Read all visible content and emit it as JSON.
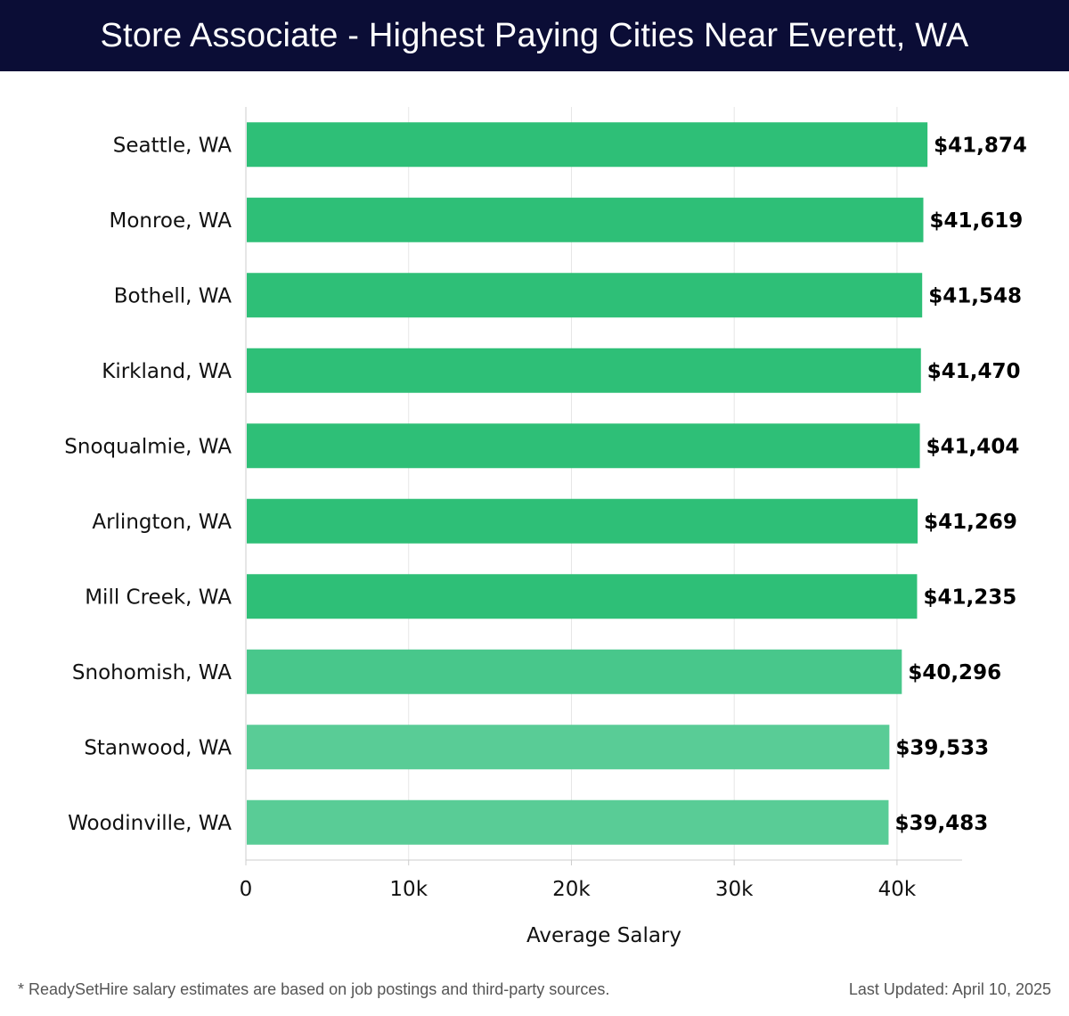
{
  "header": {
    "title": "Store Associate - Highest Paying Cities Near Everett, WA"
  },
  "chart_data": {
    "type": "bar",
    "orientation": "horizontal",
    "title": "Store Associate - Highest Paying Cities Near Everett, WA",
    "xlabel": "Average Salary",
    "ylabel": "",
    "xlim": [
      0,
      44000
    ],
    "xticks": [
      0,
      10000,
      20000,
      30000,
      40000
    ],
    "xtick_labels": [
      "0",
      "10k",
      "20k",
      "30k",
      "40k"
    ],
    "grid": true,
    "categories": [
      "Seattle, WA",
      "Monroe, WA",
      "Bothell, WA",
      "Kirkland, WA",
      "Snoqualmie, WA",
      "Arlington, WA",
      "Mill Creek, WA",
      "Snohomish, WA",
      "Stanwood, WA",
      "Woodinville, WA"
    ],
    "values": [
      41874,
      41619,
      41548,
      41470,
      41404,
      41269,
      41235,
      40296,
      39533,
      39483
    ],
    "value_labels": [
      "$41,874",
      "$41,619",
      "$41,548",
      "$41,470",
      "$41,404",
      "$41,269",
      "$41,235",
      "$40,296",
      "$39,533",
      "$39,483"
    ],
    "bar_colors": [
      "#2ebf77",
      "#2ebf77",
      "#2ebf77",
      "#2ebf77",
      "#2ebf77",
      "#2ebf77",
      "#2ebf77",
      "#48c78b",
      "#59cc96",
      "#59cc96"
    ]
  },
  "footer": {
    "note": "* ReadySetHire salary estimates are based on job postings and third-party sources.",
    "updated": "Last Updated: April 10, 2025"
  }
}
